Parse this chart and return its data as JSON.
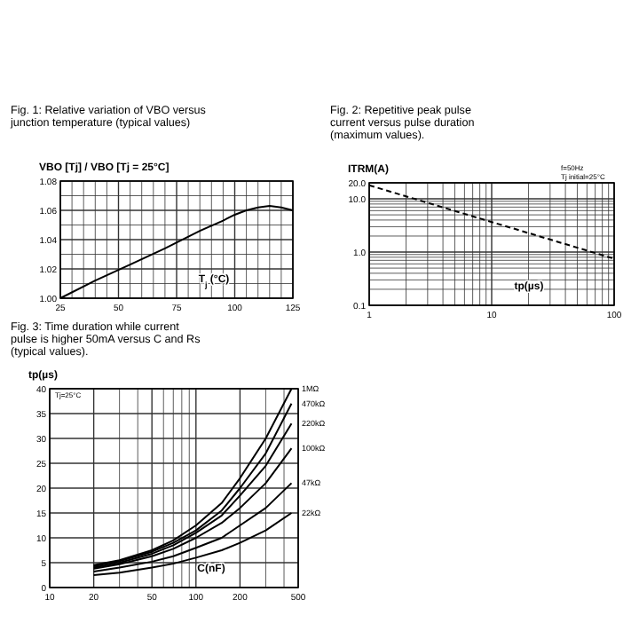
{
  "chart_data": [
    {
      "type": "line",
      "title": "Fig. 1: Relative variation of VBO versus junction temperature (typical values)",
      "ylabel": "VBO [Tj] / VBO [Tj = 25°C]",
      "xlabel": "T$_{j}$ (°C)",
      "xlim": [
        25,
        125
      ],
      "xticks": [
        25,
        {
          "value": 30,
          "label": null
        },
        {
          "value": 35,
          "label": null
        },
        {
          "value": 40,
          "label": null
        },
        {
          "value": 45,
          "label": null
        },
        50,
        {
          "value": 55,
          "label": null
        },
        {
          "value": 60,
          "label": null
        },
        {
          "value": 65,
          "label": null
        },
        {
          "value": 70,
          "label": null
        },
        75,
        {
          "value": 80,
          "label": null
        },
        {
          "value": 85,
          "label": null
        },
        {
          "value": 90,
          "label": null
        },
        {
          "value": 95,
          "label": null
        },
        100,
        {
          "value": 105,
          "label": null
        },
        {
          "value": 110,
          "label": null
        },
        {
          "value": 115,
          "label": null
        },
        {
          "value": 120,
          "label": null
        },
        125
      ],
      "ylim": [
        1.0,
        1.08
      ],
      "yticks": [
        {
          "value": 1.0,
          "label": "1.00"
        },
        {
          "value": 1.01,
          "label": null
        },
        {
          "value": 1.02,
          "label": "1.02"
        },
        {
          "value": 1.03,
          "label": null
        },
        {
          "value": 1.04,
          "label": "1.04"
        },
        {
          "value": 1.05,
          "label": null
        },
        {
          "value": 1.06,
          "label": "1.06"
        },
        {
          "value": 1.07,
          "label": null
        },
        {
          "value": 1.08,
          "label": "1.08"
        }
      ],
      "grid": true,
      "series": [
        {
          "color": "#000000",
          "x": [
            25,
            40,
            55,
            70,
            85,
            95,
            100,
            105,
            110,
            115,
            120,
            125
          ],
          "values": [
            1.0,
            1.012,
            1.023,
            1.034,
            1.046,
            1.053,
            1.057,
            1.06,
            1.062,
            1.063,
            1.062,
            1.06
          ]
        }
      ]
    },
    {
      "type": "line",
      "title": "Fig. 2: Repetitive peak pulse current versus pulse duration (maximum values).",
      "ylabel": "ITRM(A)",
      "xlabel": "tp(µs)",
      "log": "xy",
      "line_style": "dashed",
      "annotations": [
        "f=50Hz",
        "Tj initial=25°C"
      ],
      "xlim": [
        1,
        100
      ],
      "xticks": [
        1,
        {
          "value": 2,
          "label": null
        },
        {
          "value": 3,
          "label": null
        },
        {
          "value": 4,
          "label": null
        },
        {
          "value": 5,
          "label": null
        },
        {
          "value": 6,
          "label": null
        },
        {
          "value": 7,
          "label": null
        },
        {
          "value": 8,
          "label": null
        },
        {
          "value": 9,
          "label": null
        },
        10,
        {
          "value": 20,
          "label": null
        },
        {
          "value": 30,
          "label": null
        },
        {
          "value": 40,
          "label": null
        },
        {
          "value": 50,
          "label": null
        },
        {
          "value": 60,
          "label": null
        },
        {
          "value": 70,
          "label": null
        },
        {
          "value": 80,
          "label": null
        },
        {
          "value": 90,
          "label": null
        },
        100
      ],
      "ylim": [
        0.1,
        20
      ],
      "yticks": [
        {
          "value": 0.1,
          "label": "0.1"
        },
        {
          "value": 0.2,
          "label": null
        },
        {
          "value": 0.3,
          "label": null
        },
        {
          "value": 0.4,
          "label": null
        },
        {
          "value": 0.5,
          "label": null
        },
        {
          "value": 0.6,
          "label": null
        },
        {
          "value": 0.7,
          "label": null
        },
        {
          "value": 0.8,
          "label": null
        },
        {
          "value": 0.9,
          "label": null
        },
        {
          "value": 1,
          "label": "1.0"
        },
        {
          "value": 2,
          "label": null
        },
        {
          "value": 3,
          "label": null
        },
        {
          "value": 4,
          "label": null
        },
        {
          "value": 5,
          "label": null
        },
        {
          "value": 6,
          "label": null
        },
        {
          "value": 7,
          "label": null
        },
        {
          "value": 8,
          "label": null
        },
        {
          "value": 9,
          "label": null
        },
        {
          "value": 10,
          "label": "10.0"
        },
        {
          "value": 20,
          "label": "20.0"
        }
      ],
      "grid": true,
      "series": [
        {
          "color": "#000000",
          "x": [
            1,
            100
          ],
          "values": [
            18,
            0.75
          ]
        }
      ]
    },
    {
      "type": "line",
      "title": "Fig. 3: Time duration while current pulse is higher 50mA versus C and Rs (typical values).",
      "ylabel": "tp(µs)",
      "xlabel": "C(nF)",
      "log": "x",
      "annotations": [
        "Tj=25°C"
      ],
      "xlim": [
        10,
        500
      ],
      "xticks": [
        10,
        20,
        {
          "value": 30,
          "label": null
        },
        {
          "value": 40,
          "label": null
        },
        50,
        {
          "value": 60,
          "label": null
        },
        {
          "value": 70,
          "label": null
        },
        {
          "value": 80,
          "label": null
        },
        {
          "value": 90,
          "label": null
        },
        100,
        200,
        {
          "value": 300,
          "label": null
        },
        {
          "value": 400,
          "label": null
        },
        500
      ],
      "ylim": [
        0,
        40
      ],
      "yticks": [
        0,
        5,
        10,
        15,
        20,
        25,
        30,
        35,
        40
      ],
      "grid": true,
      "series": [
        {
          "name": "1MΩ",
          "color": "#000000",
          "x": [
            20,
            30,
            50,
            70,
            100,
            150,
            200,
            300,
            450
          ],
          "values": [
            4.5,
            5.5,
            7.5,
            9.5,
            12.5,
            17,
            22,
            30,
            40
          ]
        },
        {
          "name": "470kΩ",
          "color": "#000000",
          "x": [
            20,
            30,
            50,
            70,
            100,
            150,
            200,
            300,
            450
          ],
          "values": [
            4.3,
            5.3,
            7.2,
            9,
            11.5,
            15.5,
            20,
            27,
            37
          ]
        },
        {
          "name": "220kΩ",
          "color": "#000000",
          "x": [
            20,
            30,
            50,
            70,
            100,
            150,
            200,
            300,
            450
          ],
          "values": [
            4,
            5,
            6.8,
            8.5,
            11,
            14.5,
            18.5,
            24.5,
            33
          ]
        },
        {
          "name": "100kΩ",
          "color": "#000000",
          "x": [
            20,
            30,
            50,
            70,
            100,
            150,
            200,
            300,
            450
          ],
          "values": [
            3.8,
            4.7,
            6.3,
            7.8,
            10,
            13,
            16,
            21,
            28
          ]
        },
        {
          "name": "47kΩ",
          "color": "#000000",
          "x": [
            20,
            30,
            50,
            70,
            100,
            150,
            200,
            300,
            450
          ],
          "values": [
            3.2,
            4,
            5.2,
            6.3,
            8,
            10,
            12.5,
            16,
            21
          ]
        },
        {
          "name": "22kΩ",
          "color": "#000000",
          "x": [
            20,
            30,
            50,
            70,
            100,
            150,
            200,
            300,
            450
          ],
          "values": [
            2.5,
            3,
            4,
            4.8,
            6,
            7.5,
            9,
            11.5,
            15
          ]
        }
      ]
    }
  ]
}
